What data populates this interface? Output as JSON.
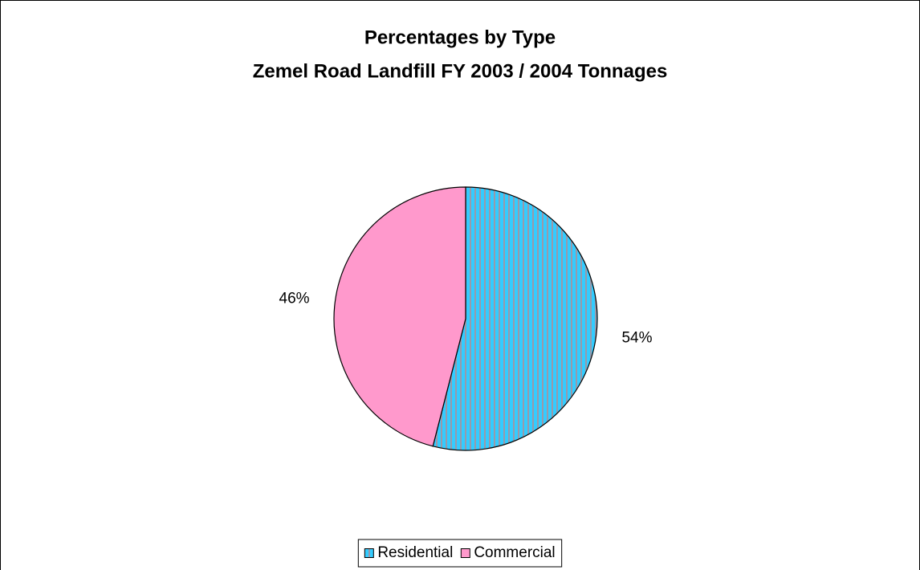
{
  "chart_data": {
    "type": "pie",
    "title": "Percentages by Type",
    "subtitle": "Zemel Road Landfill FY 2003 / 2004 Tonnages",
    "categories": [
      "Residential",
      "Commercial"
    ],
    "values": [
      54,
      46
    ],
    "value_labels": [
      "54%",
      "46%"
    ],
    "colors": [
      "#33ccff",
      "#ff99cc"
    ],
    "patterns": [
      "vertical-stripes",
      "solid"
    ],
    "legend": "bottom"
  }
}
